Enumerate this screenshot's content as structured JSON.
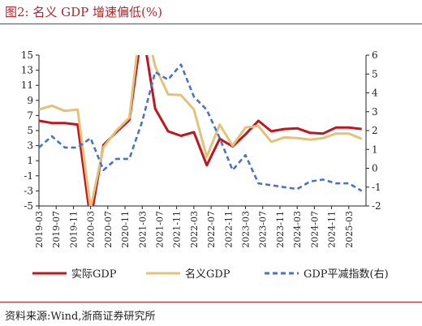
{
  "figure": {
    "title": "图2:  名义 GDP 增速偏低(%)",
    "source": "资料来源:Wind,浙商证券研究所"
  },
  "chart_data": {
    "type": "line",
    "title": "",
    "xlabel": "",
    "ylabel": "",
    "categories": [
      "2019-03",
      "2019-07",
      "2019-11",
      "2020-03",
      "2020-07",
      "2020-11",
      "2021-03",
      "2021-07",
      "2021-11",
      "2022-03",
      "2022-07",
      "2022-11",
      "2023-03",
      "2023-07",
      "2023-11",
      "2024-03",
      "2024-07",
      "2024-11",
      "2025-03"
    ],
    "y_left": {
      "min": -5,
      "max": 15,
      "ticks": [
        -5,
        -3,
        -1,
        1,
        3,
        5,
        7,
        9,
        11,
        13,
        15
      ]
    },
    "y_right": {
      "min": -2,
      "max": 6,
      "ticks": [
        -2,
        -1,
        0,
        1,
        2,
        3,
        4,
        5,
        6
      ]
    },
    "grid": false,
    "legend_position": "bottom",
    "series": [
      {
        "name": "实际GDP",
        "axis": "left",
        "color": "#c0161e",
        "style": "solid",
        "data": [
          [
            "2019-03",
            6.3
          ],
          [
            "2019-06",
            6.0
          ],
          [
            "2019-09",
            6.0
          ],
          [
            "2019-12",
            5.8
          ],
          [
            "2020-03",
            -6.9
          ],
          [
            "2020-06",
            3.1
          ],
          [
            "2020-09",
            4.8
          ],
          [
            "2020-12",
            6.4
          ],
          [
            "2021-03",
            18.7
          ],
          [
            "2021-06",
            7.9
          ],
          [
            "2021-09",
            4.9
          ],
          [
            "2021-12",
            4.3
          ],
          [
            "2022-03",
            4.8
          ],
          [
            "2022-06",
            0.4
          ],
          [
            "2022-09",
            3.9
          ],
          [
            "2022-12",
            2.9
          ],
          [
            "2023-03",
            4.5
          ],
          [
            "2023-06",
            6.3
          ],
          [
            "2023-09",
            4.9
          ],
          [
            "2023-12",
            5.2
          ],
          [
            "2024-03",
            5.3
          ],
          [
            "2024-06",
            4.7
          ],
          [
            "2024-09",
            4.6
          ],
          [
            "2024-12",
            5.4
          ],
          [
            "2025-03",
            5.4
          ],
          [
            "2025-06",
            5.2
          ]
        ]
      },
      {
        "name": "名义GDP",
        "axis": "left",
        "color": "#e3c27a",
        "style": "solid",
        "data": [
          [
            "2019-03",
            7.8
          ],
          [
            "2019-06",
            8.3
          ],
          [
            "2019-09",
            7.6
          ],
          [
            "2019-12",
            7.8
          ],
          [
            "2020-03",
            -5.3
          ],
          [
            "2020-06",
            2.8
          ],
          [
            "2020-09",
            5.0
          ],
          [
            "2020-12",
            6.7
          ],
          [
            "2021-03",
            21.2
          ],
          [
            "2021-06",
            13.5
          ],
          [
            "2021-09",
            9.8
          ],
          [
            "2021-12",
            9.7
          ],
          [
            "2022-03",
            7.8
          ],
          [
            "2022-06",
            1.5
          ],
          [
            "2022-09",
            5.8
          ],
          [
            "2022-12",
            3.0
          ],
          [
            "2023-03",
            5.4
          ],
          [
            "2023-06",
            5.6
          ],
          [
            "2023-09",
            3.5
          ],
          [
            "2023-12",
            4.1
          ],
          [
            "2024-03",
            4.0
          ],
          [
            "2024-06",
            3.8
          ],
          [
            "2024-09",
            4.0
          ],
          [
            "2024-12",
            4.6
          ],
          [
            "2025-03",
            4.6
          ],
          [
            "2025-06",
            3.9
          ]
        ]
      },
      {
        "name": "GDP平减指数(右)",
        "axis": "right",
        "color": "#4a72c8",
        "style": "dashed",
        "data": [
          [
            "2019-03",
            1.1
          ],
          [
            "2019-06",
            1.7
          ],
          [
            "2019-09",
            1.1
          ],
          [
            "2019-12",
            1.1
          ],
          [
            "2020-03",
            1.6
          ],
          [
            "2020-06",
            -0.1
          ],
          [
            "2020-09",
            0.5
          ],
          [
            "2020-12",
            0.5
          ],
          [
            "2021-03",
            2.5
          ],
          [
            "2021-06",
            5.1
          ],
          [
            "2021-09",
            4.7
          ],
          [
            "2021-12",
            5.5
          ],
          [
            "2022-03",
            3.8
          ],
          [
            "2022-06",
            3.1
          ],
          [
            "2022-09",
            1.6
          ],
          [
            "2022-12",
            -0.1
          ],
          [
            "2023-03",
            0.7
          ],
          [
            "2023-06",
            -0.8
          ],
          [
            "2023-09",
            -0.9
          ],
          [
            "2023-12",
            -1.0
          ],
          [
            "2024-03",
            -1.1
          ],
          [
            "2024-06",
            -0.7
          ],
          [
            "2024-09",
            -0.6
          ],
          [
            "2024-12",
            -0.8
          ],
          [
            "2025-03",
            -0.8
          ],
          [
            "2025-06",
            -1.2
          ]
        ]
      }
    ]
  }
}
